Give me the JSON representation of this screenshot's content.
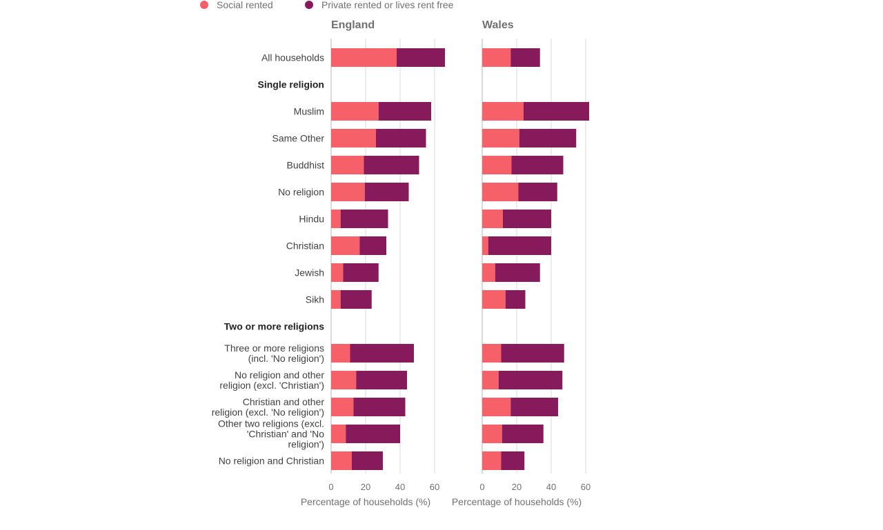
{
  "chart_data": {
    "type": "bar",
    "orientation": "horizontal",
    "stacked": true,
    "legend": [
      {
        "name": "Social rented",
        "color": "#f66068"
      },
      {
        "name": "Private rented or lives rent free",
        "color": "#871a5b"
      }
    ],
    "categories": [
      {
        "label": "All households",
        "kind": "row"
      },
      {
        "label": "Single religion",
        "kind": "group"
      },
      {
        "label": "Muslim",
        "kind": "row"
      },
      {
        "label": "Same Other",
        "kind": "row"
      },
      {
        "label": "Buddhist",
        "kind": "row"
      },
      {
        "label": "No religion",
        "kind": "row"
      },
      {
        "label": "Hindu",
        "kind": "row"
      },
      {
        "label": "Christian",
        "kind": "row"
      },
      {
        "label": "Jewish",
        "kind": "row"
      },
      {
        "label": "Sikh",
        "kind": "row"
      },
      {
        "label": "Two or more religions",
        "kind": "group"
      },
      {
        "label": "Three or more religions (incl. 'No religion')",
        "kind": "row",
        "lines": [
          "Three or more religions",
          "(incl. 'No religion')"
        ]
      },
      {
        "label": "No religion and other religion (excl. 'Christian')",
        "kind": "row",
        "lines": [
          "No religion and other",
          "religion (excl. 'Christian')"
        ]
      },
      {
        "label": "Christian and other religion (excl. 'No religion')",
        "kind": "row",
        "lines": [
          "Christian and other",
          "religion (excl. 'No religion')"
        ]
      },
      {
        "label": "Other two religions (excl. 'Christian' and 'No religion')",
        "kind": "row",
        "lines": [
          "Other two religions (excl.",
          "'Christian' and 'No",
          "religion')"
        ]
      },
      {
        "label": "No religion and Christian",
        "kind": "row"
      }
    ],
    "panels": [
      {
        "title": "England",
        "xlabel": "Percentage of households (%)",
        "xlim": [
          0,
          65
        ],
        "xticks": [
          0,
          20,
          40,
          60
        ],
        "series": [
          {
            "name": "Social rented",
            "values": [
              38,
              null,
              27.5,
              26,
              19,
              19.5,
              5.5,
              16.5,
              7,
              5.5,
              null,
              11,
              14.5,
              13,
              8.5,
              12
            ]
          },
          {
            "name": "Private rented or lives rent free",
            "values": [
              28,
              null,
              30.5,
              29,
              32,
              25.5,
              27.5,
              15.5,
              20.5,
              18,
              null,
              37,
              29.5,
              30,
              31.5,
              18
            ]
          }
        ]
      },
      {
        "title": "Wales",
        "xlabel": "Percentage of households (%)",
        "xlim": [
          0,
          65
        ],
        "xticks": [
          0,
          20,
          40,
          60
        ],
        "series": [
          {
            "name": "Social rented",
            "values": [
              16.5,
              null,
              24,
              21.5,
              17,
              21,
              12,
              3.5,
              7.5,
              13.5,
              null,
              11,
              9.5,
              16.5,
              11.5,
              11
            ]
          },
          {
            "name": "Private rented or lives rent free",
            "values": [
              17,
              null,
              38,
              33,
              30,
              22.5,
              28,
              36.5,
              26,
              11.5,
              null,
              36.5,
              37,
              27.5,
              24,
              13.5
            ]
          }
        ]
      }
    ]
  }
}
